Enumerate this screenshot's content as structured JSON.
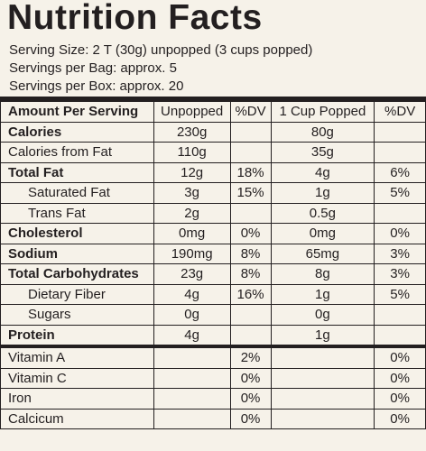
{
  "header": {
    "title": "Nutrition Facts",
    "serving_size": "Serving Size: 2 T (30g) unpopped (3 cups popped)",
    "servings_per_bag": "Servings per Bag: approx. 5",
    "servings_per_box": "Servings per Box: approx. 20"
  },
  "table": {
    "header": [
      "Amount Per Serving",
      "Unpopped",
      "%DV",
      "1 Cup Popped",
      "%DV"
    ],
    "rows": [
      [
        "Calories",
        "230g",
        null,
        "80g",
        null
      ],
      [
        "Calories from Fat",
        "110g",
        null,
        "35g",
        null
      ],
      [
        "Total Fat",
        "12g",
        "18%",
        "4g",
        "6%"
      ],
      [
        "Saturated Fat",
        "3g",
        "15%",
        "1g",
        "5%"
      ],
      [
        "Trans Fat",
        "2g",
        null,
        "0.5g",
        null
      ],
      [
        "Cholesterol",
        "0mg",
        "0%",
        "0mg",
        "0%"
      ],
      [
        "Sodium",
        "190mg",
        "8%",
        "65mg",
        "3%"
      ],
      [
        "Total Carbohydrates",
        "23g",
        "8%",
        "8g",
        "3%"
      ],
      [
        "Dietary Fiber",
        "4g",
        "16%",
        "1g",
        "5%"
      ],
      [
        "Sugars",
        "0g",
        null,
        "0g",
        null
      ],
      [
        "Protein",
        "4g",
        null,
        "1g",
        null
      ],
      [
        "Vitamin A",
        null,
        "2%",
        null,
        "0%"
      ],
      [
        "Vitamin C",
        null,
        "0%",
        null,
        "0%"
      ],
      [
        "Iron",
        null,
        "0%",
        null,
        "0%"
      ],
      [
        "Calcicum",
        null,
        "0%",
        null,
        "0%"
      ]
    ]
  }
}
